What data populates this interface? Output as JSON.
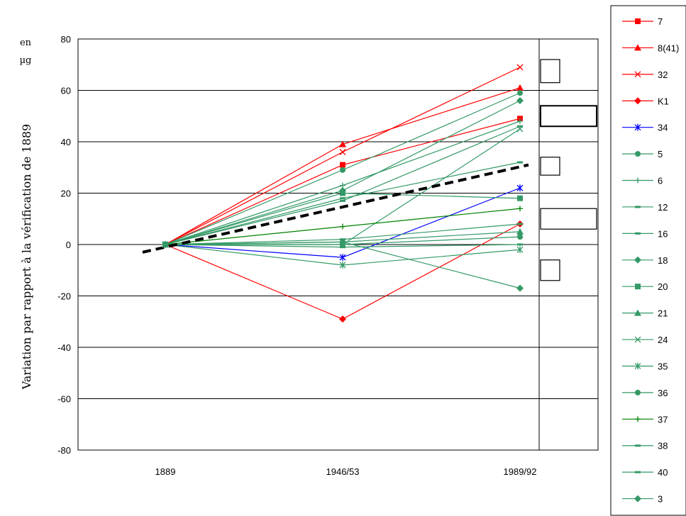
{
  "chart_data": {
    "type": "line",
    "title": "",
    "categories": [
      "1889",
      "1946/53",
      "1989/92"
    ],
    "ylabel": "Variation par rapport à la vérification de 1889",
    "unit_label_line1": "en",
    "unit_label_line2": "µg",
    "ylim": [
      -80,
      80
    ],
    "yticks": [
      80,
      60,
      40,
      20,
      0,
      -20,
      -40,
      -60,
      -80
    ],
    "grid": true,
    "legend_position": "right",
    "trend": {
      "style": "dashed",
      "color": "#000000",
      "values": [
        -3,
        31
      ]
    },
    "uncertainty_boxes": [
      [
        63,
        72
      ],
      [
        46,
        54
      ],
      [
        27,
        34
      ],
      [
        6,
        14
      ],
      [
        -14,
        -6
      ]
    ],
    "series": [
      {
        "name": "7",
        "color": "#ff0000",
        "marker": "square",
        "values": [
          0,
          31,
          49
        ]
      },
      {
        "name": "8(41)",
        "color": "#ff0000",
        "marker": "triangle",
        "values": [
          0,
          39,
          61
        ]
      },
      {
        "name": "32",
        "color": "#ff0000",
        "marker": "x",
        "values": [
          0,
          36,
          69
        ]
      },
      {
        "name": "K1",
        "color": "#ff0000",
        "marker": "diamond",
        "values": [
          0,
          -29,
          8
        ]
      },
      {
        "name": "34",
        "color": "#0000ff",
        "marker": "star",
        "values": [
          0,
          -5,
          22
        ]
      },
      {
        "name": "5",
        "color": "#339966",
        "marker": "circle",
        "values": [
          0,
          29,
          59
        ]
      },
      {
        "name": "6",
        "color": "#339966",
        "marker": "plus",
        "values": [
          0,
          23,
          48
        ]
      },
      {
        "name": "12",
        "color": "#339966",
        "marker": "dash",
        "values": [
          0,
          18,
          32
        ]
      },
      {
        "name": "16",
        "color": "#339966",
        "marker": "dash",
        "values": [
          0,
          17,
          46
        ]
      },
      {
        "name": "18",
        "color": "#339966",
        "marker": "diamond",
        "values": [
          0,
          21,
          56
        ]
      },
      {
        "name": "20",
        "color": "#339966",
        "marker": "square",
        "values": [
          0,
          20,
          18
        ]
      },
      {
        "name": "21",
        "color": "#339966",
        "marker": "triangle",
        "values": [
          0,
          1,
          5
        ]
      },
      {
        "name": "24",
        "color": "#339966",
        "marker": "x",
        "values": [
          0,
          0,
          45
        ]
      },
      {
        "name": "35",
        "color": "#339966",
        "marker": "star",
        "values": [
          0,
          -8,
          -2
        ]
      },
      {
        "name": "36",
        "color": "#339966",
        "marker": "circle",
        "values": [
          0,
          0,
          3
        ]
      },
      {
        "name": "37",
        "color": "#008000",
        "marker": "plus",
        "values": [
          0,
          7,
          14
        ]
      },
      {
        "name": "38",
        "color": "#339966",
        "marker": "dash",
        "values": [
          0,
          2,
          8
        ]
      },
      {
        "name": "40",
        "color": "#339966",
        "marker": "dash",
        "values": [
          0,
          -1,
          0
        ]
      },
      {
        "name": "3",
        "color": "#339966",
        "marker": "diamond",
        "values": [
          0,
          1,
          -17
        ]
      }
    ]
  }
}
